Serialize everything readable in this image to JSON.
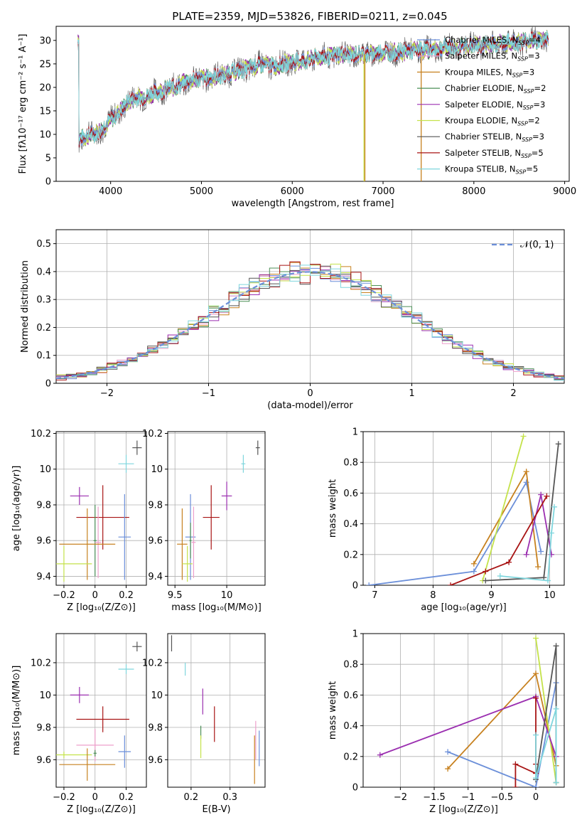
{
  "chart_data": [
    {
      "id": "spectrum",
      "type": "line",
      "title": "PLATE=2359, MJD=53826, FIBERID=0211, z=0.045",
      "xlabel": "wavelength [Angstrom, rest frame]",
      "ylabel": "Flux [fλ10⁻¹⁷ erg cm⁻² s⁻¹ A⁻¹]",
      "xlim": [
        3400,
        9050
      ],
      "ylim": [
        0,
        33
      ],
      "xticks": [
        4000,
        5000,
        6000,
        7000,
        8000,
        9000
      ],
      "yticks": [
        0,
        5,
        10,
        15,
        20,
        25,
        30
      ],
      "grid": false,
      "legend_position": "top-right",
      "envelope": {
        "x": [
          3650,
          3800,
          3900,
          4000,
          4100,
          4200,
          4300,
          4400,
          4500,
          4600,
          4700,
          4800,
          4900,
          5000,
          5100,
          5200,
          5300,
          5400,
          5500,
          5600,
          5700,
          5800,
          5900,
          6000,
          6100,
          6200,
          6300,
          6400,
          6500,
          6600,
          6700,
          6800,
          6900,
          7000,
          7100,
          7200,
          7300,
          7400,
          7500,
          7600,
          7700,
          7800,
          7900,
          8000,
          8100,
          8200,
          8300,
          8400,
          8500,
          8600,
          8700,
          8800
        ],
        "y": [
          9,
          10,
          11,
          13,
          15,
          17,
          18,
          18,
          19,
          19.5,
          20,
          21,
          21.5,
          22,
          22,
          22.5,
          23,
          23.5,
          24,
          24.5,
          25,
          24.5,
          25,
          25.5,
          25.5,
          26,
          26.5,
          26.5,
          27,
          27,
          27,
          27,
          27.2,
          27.5,
          27.5,
          27.5,
          27.8,
          28,
          28,
          28.2,
          28.5,
          28.5,
          28.7,
          29,
          29,
          29.2,
          29.5,
          29.5,
          29.7,
          30,
          30,
          30.5
        ]
      },
      "series": [
        {
          "name": "Chabrier MILES",
          "nssp": "4",
          "color": "#6b8fd9"
        },
        {
          "name": "Salpeter MILES",
          "nssp": "3",
          "color": "#ee9fcb"
        },
        {
          "name": "Kroupa MILES",
          "nssp": "3",
          "color": "#c7811f"
        },
        {
          "name": "Chabrier ELODIE",
          "nssp": "2",
          "color": "#4c8f57"
        },
        {
          "name": "Salpeter ELODIE",
          "nssp": "3",
          "color": "#9b2fb0"
        },
        {
          "name": "Kroupa ELODIE",
          "nssp": "2",
          "color": "#c4e24a"
        },
        {
          "name": "Chabrier STELIB",
          "nssp": "3",
          "color": "#555555"
        },
        {
          "name": "Salpeter STELIB",
          "nssp": "5",
          "color": "#a81414"
        },
        {
          "name": "Kroupa STELIB",
          "nssp": "5",
          "color": "#7fd6dd"
        }
      ]
    },
    {
      "id": "residuals",
      "type": "line",
      "xlabel": "(data-model)/error",
      "ylabel": "Normed distribution",
      "xlim": [
        -2.5,
        2.5
      ],
      "ylim": [
        0,
        0.55
      ],
      "xticks": [
        -2,
        -1,
        0,
        1,
        2
      ],
      "yticks": [
        0.0,
        0.1,
        0.2,
        0.3,
        0.4,
        0.5
      ],
      "grid": true,
      "legend_position": "top-right",
      "reference_label": "𝒩(0, 1)",
      "reference_color": "#6b8fd9"
    },
    {
      "id": "age-vs-Z",
      "type": "scatter",
      "xlabel": "Z [log₁₀(Z/Z⊙)]",
      "ylabel": "age  [log₁₀(age/yr)]",
      "xlim": [
        -0.25,
        0.33
      ],
      "ylim": [
        9.35,
        10.21
      ],
      "xticks": [
        -0.2,
        0.0,
        0.2
      ],
      "yticks": [
        9.4,
        9.6,
        9.8,
        10.0,
        10.2
      ],
      "grid": true,
      "points": [
        {
          "series": "Chabrier STELIB",
          "x": 0.27,
          "y": 10.12,
          "xerr": 0.03,
          "yerr": 0.04
        },
        {
          "series": "Kroupa STELIB",
          "x": 0.2,
          "y": 10.03,
          "xerr": 0.05,
          "yerr": 0.05
        },
        {
          "series": "Salpeter ELODIE",
          "x": -0.1,
          "y": 9.85,
          "xerr": 0.06,
          "yerr": 0.05
        },
        {
          "series": "Salpeter STELIB",
          "x": 0.05,
          "y": 9.73,
          "xerr": 0.17,
          "yerr": 0.18
        },
        {
          "series": "Chabrier MILES",
          "x": 0.19,
          "y": 9.62,
          "xerr": 0.04,
          "yerr": 0.24
        },
        {
          "series": "Chabrier ELODIE",
          "x": 0.0,
          "y": 9.6,
          "xerr": 0.01,
          "yerr": 0.2
        },
        {
          "series": "Salpeter MILES",
          "x": 0.02,
          "y": 9.59,
          "xerr": 0.02,
          "yerr": 0.2
        },
        {
          "series": "Kroupa MILES",
          "x": -0.05,
          "y": 9.58,
          "xerr": 0.18,
          "yerr": 0.2
        },
        {
          "series": "Kroupa ELODIE",
          "x": -0.2,
          "y": 9.47,
          "xerr": 0.18,
          "yerr": 0.1
        }
      ]
    },
    {
      "id": "age-vs-mass",
      "type": "scatter",
      "xlabel": "mass [log₁₀(M/M⊙)]",
      "xlim": [
        9.43,
        10.37
      ],
      "ylim": [
        9.35,
        10.21
      ],
      "xticks": [
        9.5,
        10.0
      ],
      "yticks": [
        9.4,
        9.6,
        9.8,
        10.0,
        10.2
      ],
      "grid": true,
      "points": [
        {
          "series": "Chabrier STELIB",
          "x": 10.3,
          "y": 10.12,
          "xerr": 0.02,
          "yerr": 0.04
        },
        {
          "series": "Kroupa STELIB",
          "x": 10.16,
          "y": 10.03,
          "xerr": 0.02,
          "yerr": 0.05
        },
        {
          "series": "Salpeter ELODIE",
          "x": 10.0,
          "y": 9.85,
          "xerr": 0.05,
          "yerr": 0.08
        },
        {
          "series": "Salpeter STELIB",
          "x": 9.85,
          "y": 9.73,
          "xerr": 0.08,
          "yerr": 0.18
        },
        {
          "series": "Chabrier MILES",
          "x": 9.65,
          "y": 9.62,
          "xerr": 0.05,
          "yerr": 0.24
        },
        {
          "series": "Chabrier ELODIE",
          "x": 9.65,
          "y": 9.6,
          "xerr": 0.01,
          "yerr": 0.1
        },
        {
          "series": "Salpeter MILES",
          "x": 9.68,
          "y": 9.59,
          "xerr": 0.02,
          "yerr": 0.2
        },
        {
          "series": "Kroupa MILES",
          "x": 9.57,
          "y": 9.58,
          "xerr": 0.05,
          "yerr": 0.2
        },
        {
          "series": "Kroupa ELODIE",
          "x": 9.62,
          "y": 9.47,
          "xerr": 0.05,
          "yerr": 0.1
        }
      ]
    },
    {
      "id": "massweight-vs-age",
      "type": "line",
      "xlabel": "age  [log₁₀(age/yr)]",
      "ylabel": "mass weight",
      "xlim": [
        6.8,
        10.25
      ],
      "ylim": [
        0,
        1.0
      ],
      "xticks": [
        7,
        8,
        9,
        10
      ],
      "yticks": [
        0.0,
        0.2,
        0.4,
        0.6,
        0.8,
        1.0
      ],
      "grid": true,
      "lines": [
        {
          "series": "Chabrier MILES",
          "x": [
            6.9,
            8.7,
            9.6,
            9.85
          ],
          "y": [
            0.0,
            0.09,
            0.67,
            0.22
          ]
        },
        {
          "series": "Kroupa MILES",
          "x": [
            8.7,
            9.6,
            9.8
          ],
          "y": [
            0.14,
            0.74,
            0.12
          ]
        },
        {
          "series": "Kroupa ELODIE",
          "x": [
            8.85,
            9.55
          ],
          "y": [
            0.03,
            0.97
          ]
        },
        {
          "series": "Salpeter ELODIE",
          "x": [
            9.6,
            9.85,
            10.03
          ],
          "y": [
            0.2,
            0.59,
            0.2
          ]
        },
        {
          "series": "Salpeter STELIB",
          "x": [
            8.3,
            8.9,
            9.3,
            9.95
          ],
          "y": [
            0.0,
            0.09,
            0.15,
            0.58
          ]
        },
        {
          "series": "Chabrier STELIB",
          "x": [
            8.9,
            9.9,
            10.15
          ],
          "y": [
            0.03,
            0.05,
            0.92
          ]
        },
        {
          "series": "Kroupa STELIB",
          "x": [
            9.15,
            9.97,
            10.03,
            10.08
          ],
          "y": [
            0.06,
            0.03,
            0.34,
            0.51
          ]
        }
      ]
    },
    {
      "id": "mass-vs-Z",
      "type": "scatter",
      "xlabel": "Z [log₁₀(Z/Z⊙)]",
      "ylabel": "mass [log₁₀(M/M⊙)]",
      "xlim": [
        -0.25,
        0.33
      ],
      "ylim": [
        9.43,
        10.38
      ],
      "xticks": [
        -0.2,
        0.0,
        0.2
      ],
      "yticks": [
        9.6,
        9.8,
        10.0,
        10.2
      ],
      "grid": true,
      "points": [
        {
          "series": "Chabrier STELIB",
          "x": 0.27,
          "y": 10.3,
          "xerr": 0.03,
          "yerr": 0.03
        },
        {
          "series": "Kroupa STELIB",
          "x": 0.2,
          "y": 10.16,
          "xerr": 0.05,
          "yerr": 0.03
        },
        {
          "series": "Salpeter ELODIE",
          "x": -0.1,
          "y": 10.0,
          "xerr": 0.06,
          "yerr": 0.05
        },
        {
          "series": "Salpeter STELIB",
          "x": 0.05,
          "y": 9.85,
          "xerr": 0.17,
          "yerr": 0.08
        },
        {
          "series": "Salpeter MILES",
          "x": 0.0,
          "y": 9.69,
          "xerr": 0.12,
          "yerr": 0.1
        },
        {
          "series": "Chabrier MILES",
          "x": 0.19,
          "y": 9.65,
          "xerr": 0.04,
          "yerr": 0.1
        },
        {
          "series": "Chabrier ELODIE",
          "x": 0.0,
          "y": 9.64,
          "xerr": 0.01,
          "yerr": 0.02
        },
        {
          "series": "Kroupa ELODIE",
          "x": -0.2,
          "y": 9.63,
          "xerr": 0.18,
          "yerr": 0.02
        },
        {
          "series": "Kroupa MILES",
          "x": -0.05,
          "y": 9.57,
          "xerr": 0.18,
          "yerr": 0.1
        }
      ]
    },
    {
      "id": "mass-vs-EBV",
      "type": "scatter",
      "xlabel": "E(B-V)",
      "xlim": [
        0.14,
        0.39
      ],
      "ylim": [
        9.43,
        10.38
      ],
      "xticks": [
        0.2,
        0.3
      ],
      "yticks": [
        9.6,
        9.8,
        10.0,
        10.2
      ],
      "grid": true,
      "points": [
        {
          "series": "Chabrier STELIB",
          "x": 0.15,
          "y": 10.32,
          "yerr": 0.05
        },
        {
          "series": "Kroupa STELIB",
          "x": 0.185,
          "y": 10.16,
          "yerr": 0.04
        },
        {
          "series": "Salpeter ELODIE",
          "x": 0.23,
          "y": 9.96,
          "yerr": 0.08
        },
        {
          "series": "Salpeter STELIB",
          "x": 0.26,
          "y": 9.82,
          "yerr": 0.11
        },
        {
          "series": "Chabrier ELODIE",
          "x": 0.225,
          "y": 9.77,
          "yerr": 0.04
        },
        {
          "series": "Kroupa ELODIE",
          "x": 0.225,
          "y": 9.68,
          "yerr": 0.07
        },
        {
          "series": "Salpeter MILES",
          "x": 0.366,
          "y": 9.72,
          "yerr": 0.12
        },
        {
          "series": "Chabrier MILES",
          "x": 0.375,
          "y": 9.67,
          "yerr": 0.11
        },
        {
          "series": "Kroupa MILES",
          "x": 0.363,
          "y": 9.6,
          "yerr": 0.15
        }
      ]
    },
    {
      "id": "massweight-vs-Z",
      "type": "line",
      "xlabel": "Z [log₁₀(Z/Z⊙)]",
      "ylabel": "mass weight",
      "xlim": [
        -2.55,
        0.42
      ],
      "ylim": [
        0,
        1.0
      ],
      "xticks": [
        -2.0,
        -1.5,
        -1.0,
        -0.5,
        0.0
      ],
      "yticks": [
        0.0,
        0.2,
        0.4,
        0.6,
        0.8,
        1.0
      ],
      "grid": true,
      "lines": [
        {
          "series": "Chabrier MILES",
          "x": [
            -1.3,
            0.0,
            0.3
          ],
          "y": [
            0.23,
            0.0,
            0.68
          ]
        },
        {
          "series": "Kroupa MILES",
          "x": [
            -1.3,
            0.0,
            0.3
          ],
          "y": [
            0.12,
            0.74,
            0.14
          ]
        },
        {
          "series": "Kroupa ELODIE",
          "x": [
            0.0,
            0.3
          ],
          "y": [
            0.97,
            0.03
          ]
        },
        {
          "series": "Salpeter ELODIE",
          "x": [
            -2.3,
            0.0,
            0.3
          ],
          "y": [
            0.21,
            0.59,
            0.2
          ]
        },
        {
          "series": "Salpeter STELIB",
          "x": [
            -0.3,
            -0.3,
            0.0,
            0.0,
            0.0
          ],
          "y": [
            0.0,
            0.15,
            0.09,
            0.58,
            0.15
          ]
        },
        {
          "series": "Chabrier STELIB",
          "x": [
            0.0,
            0.3,
            0.3
          ],
          "y": [
            0.05,
            0.92,
            0.03
          ]
        },
        {
          "series": "Kroupa STELIB",
          "x": [
            0.0,
            0.0,
            0.3,
            0.3
          ],
          "y": [
            0.34,
            0.06,
            0.51,
            0.03
          ]
        }
      ]
    }
  ]
}
